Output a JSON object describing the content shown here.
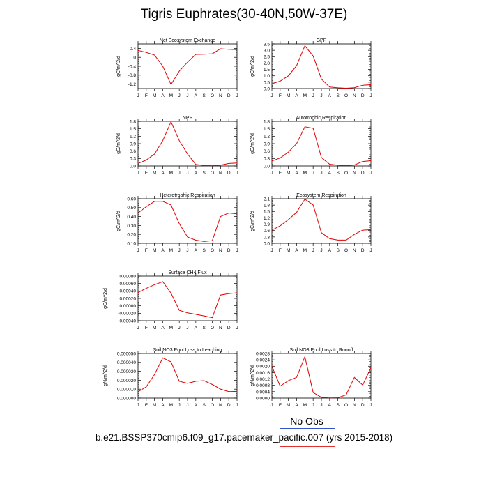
{
  "title": "Tigris Euphrates(30-40N,50W-37E)",
  "legend": {
    "obs_label": "No Obs",
    "case_label": "b.e21.BSSP370cmip6.f09_g17.pacemaker_pacific.007 (yrs 2015-2018)",
    "obs_color": "#3355cc",
    "case_color": "#e03030"
  },
  "line_color": "#e00000",
  "chart_data": [
    {
      "type": "line",
      "title": "Net Ecosystem Exchange",
      "ylabel": "gC/m^2/d",
      "categories": [
        "J",
        "F",
        "M",
        "A",
        "M",
        "J",
        "J",
        "A",
        "S",
        "O",
        "N",
        "D",
        "J"
      ],
      "ylim": [
        -1.4,
        0.6
      ],
      "yticks": [
        0.4,
        0,
        -0.4,
        -0.8,
        -1.2
      ],
      "ytick_labels": [
        "0.4",
        "0",
        "-0.4",
        "-0.8",
        "-1.2"
      ],
      "values": [
        0.31,
        0.22,
        0.1,
        -0.4,
        -1.22,
        -0.62,
        -0.22,
        0.13,
        0.14,
        0.16,
        0.38,
        0.36,
        0.34
      ]
    },
    {
      "type": "line",
      "title": "GPP",
      "ylabel": "gC/m^2/d",
      "categories": [
        "J",
        "F",
        "M",
        "A",
        "M",
        "J",
        "J",
        "A",
        "S",
        "O",
        "N",
        "D",
        "J"
      ],
      "ylim": [
        0,
        3.5
      ],
      "yticks": [
        0,
        0.5,
        1.0,
        1.5,
        2.0,
        2.5,
        3.0,
        3.5
      ],
      "ytick_labels": [
        "0.0",
        "0.5",
        "1.0",
        "1.5",
        "2.0",
        "2.5",
        "3.0",
        "3.5"
      ],
      "values": [
        0.37,
        0.58,
        1.0,
        1.8,
        3.35,
        2.55,
        0.75,
        0.12,
        0.06,
        0.03,
        0.07,
        0.26,
        0.3
      ]
    },
    {
      "type": "line",
      "title": "NPP",
      "ylabel": "gC/m^2/d",
      "categories": [
        "J",
        "F",
        "M",
        "A",
        "M",
        "J",
        "J",
        "A",
        "S",
        "O",
        "N",
        "D",
        "J"
      ],
      "ylim": [
        0,
        1.8
      ],
      "yticks": [
        0,
        0.3,
        0.6,
        0.9,
        1.2,
        1.5,
        1.8
      ],
      "ytick_labels": [
        "0.0",
        "0.3",
        "0.6",
        "0.9",
        "1.2",
        "1.5",
        "1.8"
      ],
      "values": [
        0.1,
        0.24,
        0.48,
        1.02,
        1.78,
        1.02,
        0.48,
        0.06,
        0.02,
        0.01,
        0.03,
        0.1,
        0.12
      ]
    },
    {
      "type": "line",
      "title": "Autotrophic Respiration",
      "ylabel": "gC/m^2/d",
      "categories": [
        "J",
        "F",
        "M",
        "A",
        "M",
        "J",
        "J",
        "A",
        "S",
        "O",
        "N",
        "D",
        "J"
      ],
      "ylim": [
        0,
        1.8
      ],
      "yticks": [
        0,
        0.3,
        0.6,
        0.9,
        1.2,
        1.5,
        1.8
      ],
      "ytick_labels": [
        "0.0",
        "0.3",
        "0.6",
        "0.9",
        "1.2",
        "1.5",
        "1.8"
      ],
      "values": [
        0.2,
        0.32,
        0.56,
        0.9,
        1.58,
        1.52,
        0.34,
        0.07,
        0.03,
        0.02,
        0.04,
        0.18,
        0.21
      ]
    },
    {
      "type": "line",
      "title": "Heterotrophic Respiration",
      "ylabel": "gC/m^2/d",
      "categories": [
        "J",
        "F",
        "M",
        "A",
        "M",
        "J",
        "J",
        "A",
        "S",
        "O",
        "N",
        "D",
        "J"
      ],
      "ylim": [
        0.1,
        0.6
      ],
      "yticks": [
        0.1,
        0.2,
        0.3,
        0.4,
        0.5,
        0.6
      ],
      "ytick_labels": [
        "0.10",
        "0.20",
        "0.30",
        "0.40",
        "0.50",
        "0.60"
      ],
      "values": [
        0.44,
        0.51,
        0.57,
        0.57,
        0.53,
        0.32,
        0.17,
        0.135,
        0.12,
        0.13,
        0.4,
        0.44,
        0.43
      ]
    },
    {
      "type": "line",
      "title": "Ecosystem Respiration",
      "ylabel": "gC/m^2/d",
      "categories": [
        "J",
        "F",
        "M",
        "A",
        "M",
        "J",
        "J",
        "A",
        "S",
        "O",
        "N",
        "D",
        "J"
      ],
      "ylim": [
        0,
        2.1
      ],
      "yticks": [
        0,
        0.3,
        0.6,
        0.9,
        1.2,
        1.5,
        1.8,
        2.1
      ],
      "ytick_labels": [
        "0.0",
        "0.3",
        "0.6",
        "0.9",
        "1.2",
        "1.5",
        "1.8",
        "2.1"
      ],
      "values": [
        0.62,
        0.82,
        1.12,
        1.46,
        2.08,
        1.8,
        0.5,
        0.22,
        0.15,
        0.15,
        0.42,
        0.62,
        0.64
      ]
    },
    {
      "type": "line",
      "title": "Surface CH4 Flux",
      "ylabel": "gC/m^2/d",
      "categories": [
        "J",
        "F",
        "M",
        "A",
        "M",
        "J",
        "J",
        "A",
        "S",
        "O",
        "N",
        "D",
        "J"
      ],
      "ylim": [
        -0.0004,
        0.0008
      ],
      "yticks": [
        -0.0004,
        -0.0002,
        0,
        0.0002,
        0.0004,
        0.0006,
        0.0008
      ],
      "ytick_labels": [
        "-0.00040",
        "-0.00020",
        "0.00000",
        "0.00020",
        "0.00040",
        "0.00060",
        "0.00080"
      ],
      "values": [
        0.00036,
        0.00047,
        0.00057,
        0.00065,
        0.00034,
        -0.00012,
        -0.00019,
        -0.00023,
        -0.00027,
        -0.00032,
        0.00029,
        0.00033,
        0.00035
      ]
    },
    {
      "type": "line",
      "title": "Soil NO3 Pool Loss to Leaching",
      "ylabel": "gN/m^2/d",
      "categories": [
        "J",
        "F",
        "M",
        "A",
        "M",
        "J",
        "J",
        "A",
        "S",
        "O",
        "N",
        "D",
        "J"
      ],
      "ylim": [
        0,
        5e-05
      ],
      "yticks": [
        0,
        1e-05,
        2e-05,
        3e-05,
        4e-05,
        5e-05
      ],
      "ytick_labels": [
        "0.000000",
        "0.000010",
        "0.000020",
        "0.000030",
        "0.000040",
        "0.000050"
      ],
      "values": [
        7.1e-06,
        1.26e-05,
        2.65e-05,
        4.51e-05,
        4.06e-05,
        1.89e-05,
        1.65e-05,
        1.88e-05,
        1.95e-05,
        1.52e-05,
        1.01e-05,
        7.3e-06,
        7.5e-06
      ]
    },
    {
      "type": "line",
      "title": "Soil NO3 Pool Loss to Runoff",
      "ylabel": "gN/m^2/d",
      "categories": [
        "J",
        "F",
        "M",
        "A",
        "M",
        "J",
        "J",
        "A",
        "S",
        "O",
        "N",
        "D",
        "J"
      ],
      "ylim": [
        0,
        0.0028
      ],
      "yticks": [
        0,
        0.0004,
        0.0008,
        0.0012,
        0.0016,
        0.002,
        0.0024,
        0.0028
      ],
      "ytick_labels": [
        "0.0000",
        "0.0004",
        "0.0008",
        "0.0012",
        "0.0016",
        "0.0020",
        "0.0024",
        "0.0028"
      ],
      "values": [
        0.002,
        0.00075,
        0.0011,
        0.0013,
        0.0026,
        0.00035,
        5e-05,
        1e-05,
        2e-05,
        0.0002,
        0.0013,
        0.00082,
        0.0019
      ]
    }
  ]
}
